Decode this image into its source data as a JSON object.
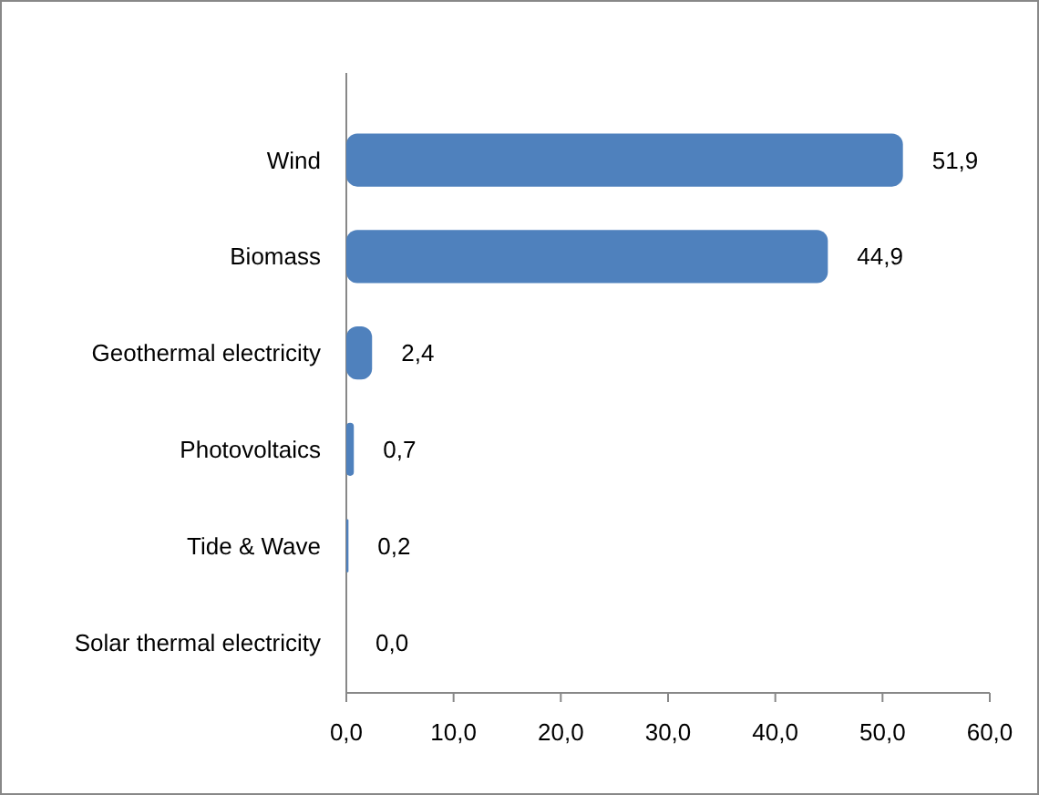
{
  "chart_data": {
    "type": "bar",
    "orientation": "horizontal",
    "categories": [
      "Wind",
      "Biomass",
      "Geothermal electricity",
      "Photovoltaics",
      "Tide & Wave",
      "Solar thermal electricity"
    ],
    "values": [
      51.9,
      44.9,
      2.4,
      0.7,
      0.2,
      0.0
    ],
    "value_labels": [
      "51,9",
      "44,9",
      "2,4",
      "0,7",
      "0,2",
      "0,0"
    ],
    "color": "#4f81bd",
    "xlim": [
      0,
      60
    ],
    "xticks": [
      {
        "value": 0,
        "label": "0,0"
      },
      {
        "value": 10,
        "label": "10,0"
      },
      {
        "value": 20,
        "label": "20,0"
      },
      {
        "value": 30,
        "label": "30,0"
      },
      {
        "value": 40,
        "label": "40,0"
      },
      {
        "value": 50,
        "label": "50,0"
      },
      {
        "value": 60,
        "label": "60,0"
      }
    ],
    "grid": false
  }
}
